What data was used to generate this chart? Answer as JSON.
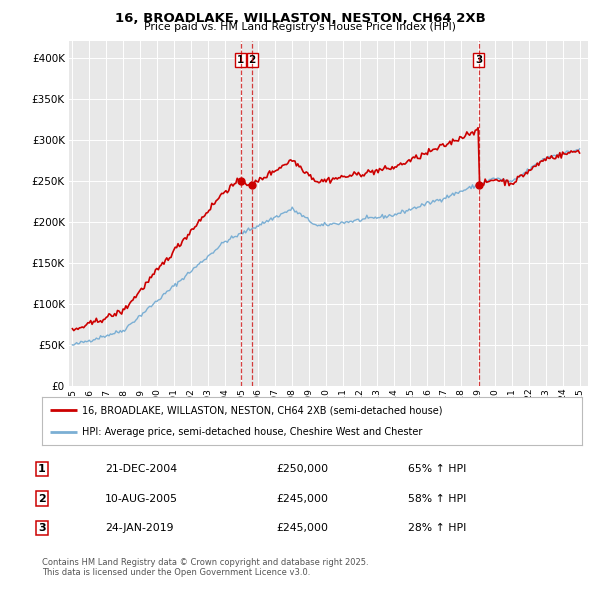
{
  "title": "16, BROADLAKE, WILLASTON, NESTON, CH64 2XB",
  "subtitle": "Price paid vs. HM Land Registry's House Price Index (HPI)",
  "legend_property": "16, BROADLAKE, WILLASTON, NESTON, CH64 2XB (semi-detached house)",
  "legend_hpi": "HPI: Average price, semi-detached house, Cheshire West and Chester",
  "property_color": "#cc0000",
  "hpi_color": "#7bafd4",
  "sale1_date": "21-DEC-2004",
  "sale1_price": 250000,
  "sale1_hpi": "65% ↑ HPI",
  "sale2_date": "10-AUG-2005",
  "sale2_price": 245000,
  "sale2_hpi": "58% ↑ HPI",
  "sale3_date": "24-JAN-2019",
  "sale3_price": 245000,
  "sale3_hpi": "28% ↑ HPI",
  "footnote": "Contains HM Land Registry data © Crown copyright and database right 2025.\nThis data is licensed under the Open Government Licence v3.0.",
  "ylim_min": 0,
  "ylim_max": 420000,
  "chart_bg": "#e8e8e8"
}
